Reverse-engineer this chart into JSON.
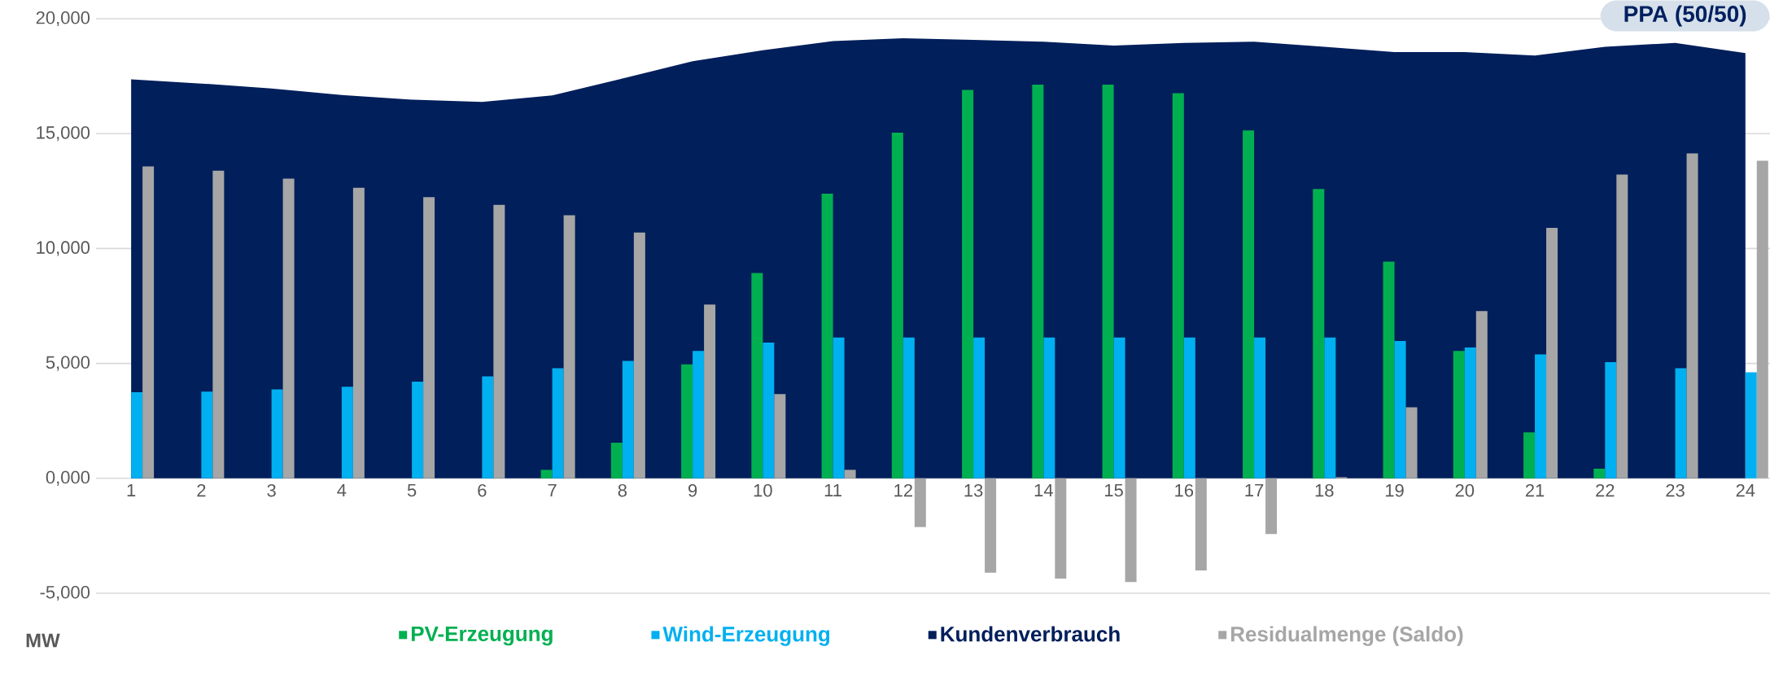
{
  "chart_data": {
    "type": "bar",
    "title": "PPA (50/50)",
    "ylabel": "MW",
    "categories": [
      "1",
      "2",
      "3",
      "4",
      "5",
      "6",
      "7",
      "8",
      "9",
      "10",
      "11",
      "12",
      "13",
      "14",
      "15",
      "16",
      "17",
      "18",
      "19",
      "20",
      "21",
      "22",
      "23",
      "24"
    ],
    "series": [
      {
        "name": "PV-Erzeugung",
        "color": "#00b050",
        "values": [
          0,
          0,
          0,
          0,
          0,
          0,
          370,
          1550,
          4960,
          8930,
          12390,
          15040,
          16900,
          17130,
          17130,
          16760,
          15140,
          12590,
          9430,
          5540,
          2000,
          420,
          0,
          0
        ]
      },
      {
        "name": "Wind-Erzeugung",
        "color": "#00b0f0",
        "values": [
          3750,
          3770,
          3870,
          3990,
          4210,
          4440,
          4790,
          5110,
          5540,
          5910,
          6130,
          6130,
          6130,
          6130,
          6130,
          6130,
          6130,
          6130,
          5980,
          5690,
          5390,
          5060,
          4790,
          4610
        ]
      },
      {
        "name": "Kundenverbrauch",
        "type": "area",
        "color": "#001f5b",
        "values": [
          17360,
          17180,
          16960,
          16680,
          16480,
          16380,
          16660,
          17400,
          18150,
          18630,
          19030,
          19150,
          19080,
          19000,
          18830,
          18950,
          19000,
          18780,
          18550,
          18550,
          18400,
          18780,
          18950,
          18500
        ]
      },
      {
        "name": "Residualmenge (Saldo)",
        "color": "#a6a6a6",
        "values": [
          13570,
          13390,
          13040,
          12640,
          12240,
          11900,
          11450,
          10700,
          7560,
          3670,
          370,
          -2120,
          -4110,
          -4360,
          -4510,
          -4010,
          -2420,
          50,
          3090,
          7280,
          10900,
          13220,
          14140,
          13820
        ]
      }
    ],
    "ylim": [
      -5000,
      20000
    ],
    "yticks": [
      {
        "value": -5000,
        "label": "-5,000"
      },
      {
        "value": 0,
        "label": "0,000"
      },
      {
        "value": 5000,
        "label": "5,000"
      },
      {
        "value": 10000,
        "label": "10,000"
      },
      {
        "value": 15000,
        "label": "15,000"
      },
      {
        "value": 20000,
        "label": "20,000"
      }
    ],
    "grid": "y",
    "legend": "bottom"
  }
}
